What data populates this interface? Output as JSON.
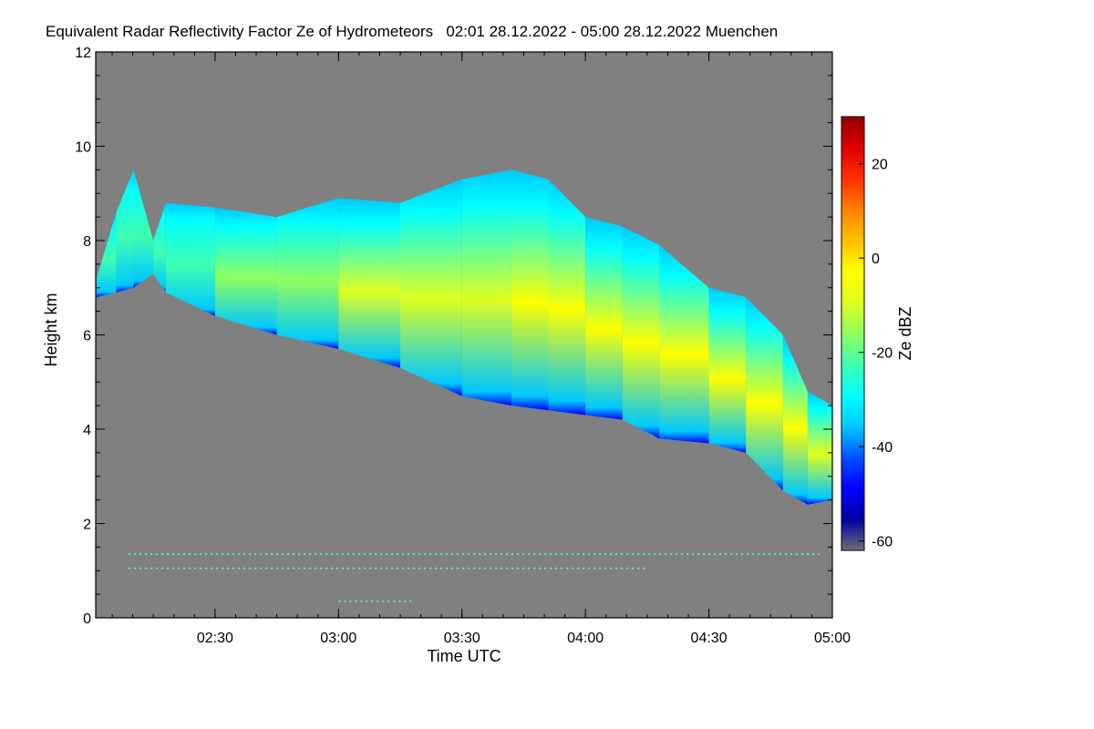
{
  "chart_data": {
    "type": "heatmap",
    "title": "Equivalent Radar Reflectivity Factor Ze of Hydrometeors   02:01 28.12.2022 - 05:00 28.12.2022 Muenchen",
    "xlabel": "Time UTC",
    "ylabel": "Height km",
    "colorbar_label": "Ze dBZ",
    "xlim_hours": [
      2.0167,
      5.0
    ],
    "ylim": [
      0,
      12
    ],
    "x_ticks": [
      {
        "value": 2.5,
        "label": "02:30"
      },
      {
        "value": 3.0,
        "label": "03:00"
      },
      {
        "value": 3.5,
        "label": "03:30"
      },
      {
        "value": 4.0,
        "label": "04:00"
      },
      {
        "value": 4.5,
        "label": "04:30"
      },
      {
        "value": 5.0,
        "label": "05:00"
      }
    ],
    "y_ticks": [
      {
        "value": 0,
        "label": "0"
      },
      {
        "value": 2,
        "label": "2"
      },
      {
        "value": 4,
        "label": "4"
      },
      {
        "value": 6,
        "label": "6"
      },
      {
        "value": 8,
        "label": "8"
      },
      {
        "value": 10,
        "label": "10"
      },
      {
        "value": 12,
        "label": "12"
      }
    ],
    "colorbar_range": [
      -62,
      30
    ],
    "colorbar_ticks": [
      {
        "value": 20,
        "label": "20"
      },
      {
        "value": 0,
        "label": "0"
      },
      {
        "value": -20,
        "label": "-20"
      },
      {
        "value": -40,
        "label": "-40"
      },
      {
        "value": -60,
        "label": "-60"
      }
    ],
    "no_data_color": "#808080",
    "colormap": [
      "#6e6e78",
      "#0000a0",
      "#0000ff",
      "#0050ff",
      "#00c8ff",
      "#00ffff",
      "#40ffb0",
      "#90ff60",
      "#e0ff20",
      "#ffff00",
      "#ffc000",
      "#ff8000",
      "#ff3000",
      "#e00000",
      "#900000"
    ],
    "cloud_profile": [
      {
        "t": 2.02,
        "top": 7.2,
        "base": 6.8,
        "ze": -24
      },
      {
        "t": 2.1,
        "top": 8.6,
        "base": 6.9,
        "ze": -24
      },
      {
        "t": 2.17,
        "top": 9.5,
        "base": 7.0,
        "ze": -22
      },
      {
        "t": 2.25,
        "top": 8.0,
        "base": 7.3,
        "ze": -25
      },
      {
        "t": 2.3,
        "top": 8.8,
        "base": 6.9,
        "ze": -20
      },
      {
        "t": 2.5,
        "top": 8.7,
        "base": 6.4,
        "ze": -16
      },
      {
        "t": 2.75,
        "top": 8.5,
        "base": 6.0,
        "ze": -15
      },
      {
        "t": 3.0,
        "top": 8.9,
        "base": 5.7,
        "ze": -10
      },
      {
        "t": 3.25,
        "top": 8.8,
        "base": 5.3,
        "ze": -10
      },
      {
        "t": 3.5,
        "top": 9.3,
        "base": 4.7,
        "ze": -10
      },
      {
        "t": 3.7,
        "top": 9.5,
        "base": 4.5,
        "ze": -5
      },
      {
        "t": 3.85,
        "top": 9.3,
        "base": 4.4,
        "ze": -5
      },
      {
        "t": 4.0,
        "top": 8.5,
        "base": 4.3,
        "ze": -5
      },
      {
        "t": 4.15,
        "top": 8.3,
        "base": 4.2,
        "ze": -3
      },
      {
        "t": 4.3,
        "top": 7.9,
        "base": 3.8,
        "ze": -1
      },
      {
        "t": 4.5,
        "top": 7.0,
        "base": 3.7,
        "ze": 0
      },
      {
        "t": 4.65,
        "top": 6.8,
        "base": 3.5,
        "ze": -1
      },
      {
        "t": 4.8,
        "top": 6.0,
        "base": 2.7,
        "ze": -4
      },
      {
        "t": 4.9,
        "top": 4.8,
        "base": 2.4,
        "ze": -12
      },
      {
        "t": 5.0,
        "top": 4.5,
        "base": 2.5,
        "ze": -18
      }
    ],
    "clutter_lines": [
      {
        "height": 1.35,
        "t_start": 2.15,
        "t_end": 4.95
      },
      {
        "height": 1.05,
        "t_start": 2.15,
        "t_end": 4.25
      },
      {
        "height": 0.35,
        "t_start": 3.0,
        "t_end": 3.3
      }
    ]
  }
}
